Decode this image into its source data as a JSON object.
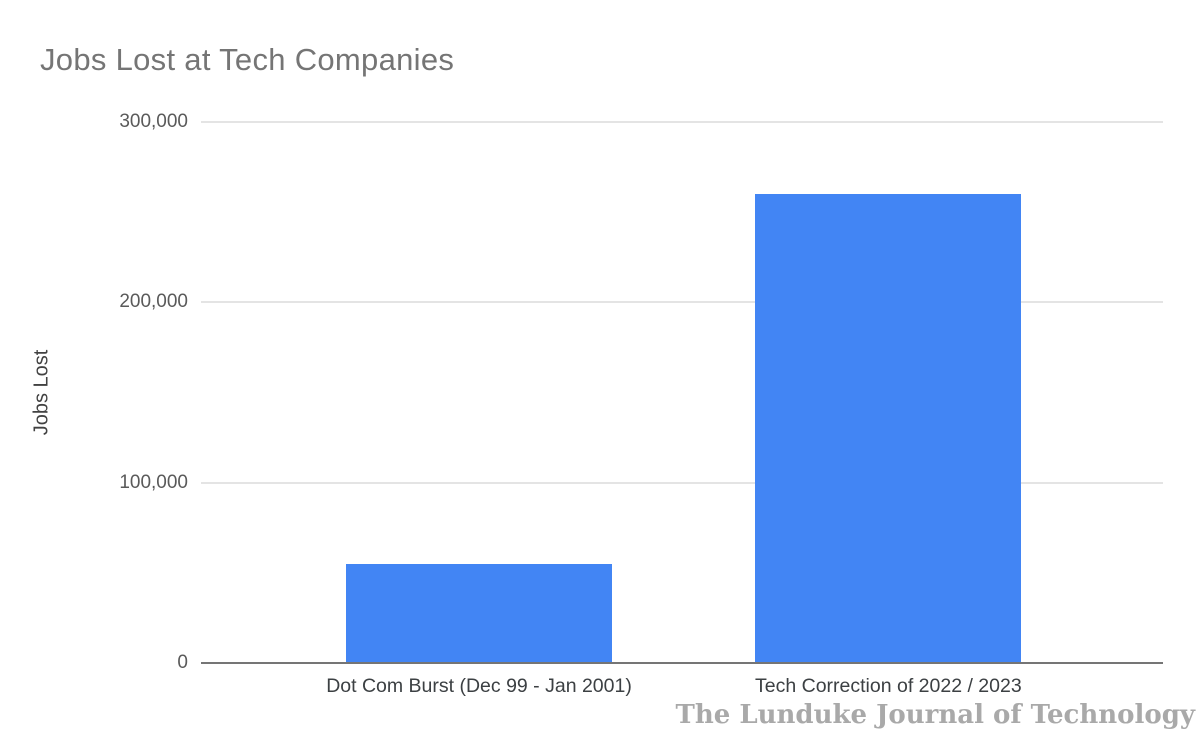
{
  "chart_data": {
    "type": "bar",
    "title": "Jobs Lost at Tech Companies",
    "xlabel": "",
    "ylabel": "Jobs Lost",
    "categories": [
      "Dot Com Burst (Dec 99 - Jan 2001)",
      "Tech Correction of 2022 / 2023"
    ],
    "values": [
      55000,
      260000
    ],
    "ylim": [
      0,
      300000
    ],
    "yticks": [
      {
        "value": 0,
        "label": "0"
      },
      {
        "value": 100000,
        "label": "100,000"
      },
      {
        "value": 200000,
        "label": "200,000"
      },
      {
        "value": 300000,
        "label": "300,000"
      }
    ],
    "grid": true,
    "legend": "none",
    "bar_color": "#4285f4"
  },
  "colors": {
    "background": "#ffffff",
    "title": "#757575",
    "y_axis_title": "#424242",
    "tick_label": "#5a5a5a",
    "category_label": "#3c4043",
    "gridline": "#e4e4e4",
    "baseline": "#757575",
    "bar": "#4285f4",
    "watermark": "#a9a9a9"
  },
  "watermark": {
    "text": "The Lunduke Journal of Technology"
  }
}
